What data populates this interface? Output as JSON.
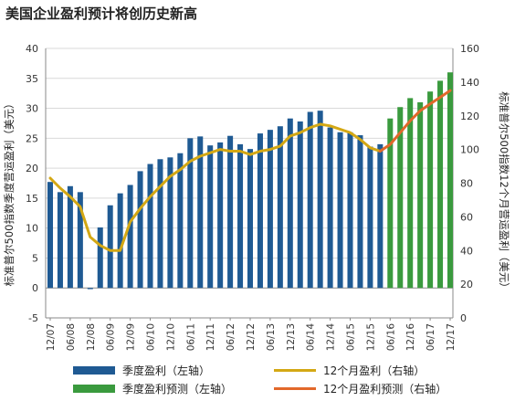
{
  "chart_data": {
    "type": "bar",
    "title": "美国企业盈利预计将创历史新高",
    "ylabel_left": "标准普尔500指数季度营运盈利（美元）",
    "ylabel_right": "标准普尔500指数12个月营运盈利（美元）",
    "ylim_left": [
      -5,
      40
    ],
    "ylim_right": [
      0,
      160
    ],
    "left_ticks": [
      "-5",
      "0",
      "5",
      "10",
      "15",
      "20",
      "25",
      "30",
      "35",
      "40"
    ],
    "right_ticks": [
      "0",
      "20",
      "40",
      "60",
      "80",
      "100",
      "120",
      "140",
      "160"
    ],
    "x_tick_labels": [
      "12/07",
      "06/08",
      "12/08",
      "06/09",
      "12/09",
      "06/10",
      "12/10",
      "06/11",
      "12/11",
      "06/12",
      "12/12",
      "06/13",
      "12/13",
      "06/14",
      "12/14",
      "06/15",
      "12/15",
      "06/16",
      "12/16",
      "06/17",
      "12/17"
    ],
    "x_start": "12/07",
    "x_end": "12/17",
    "grid": "horizontal",
    "legend_position": "bottom",
    "series": [
      {
        "name": "季度盈利（左轴）",
        "kind": "bar",
        "axis": "left",
        "color": "#1f5a93",
        "x": [
          "12/07",
          "03/08",
          "06/08",
          "09/08",
          "12/08",
          "03/09",
          "06/09",
          "09/09",
          "12/09",
          "03/10",
          "06/10",
          "09/10",
          "12/10",
          "03/11",
          "06/11",
          "09/11",
          "12/11",
          "03/12",
          "06/12",
          "09/12",
          "12/12",
          "03/13",
          "06/13",
          "09/13",
          "12/13",
          "03/14",
          "06/14",
          "09/14",
          "12/14",
          "03/15",
          "06/15",
          "09/15",
          "12/15",
          "03/16"
        ],
        "values": [
          17.7,
          16.0,
          17.0,
          16.0,
          -0.2,
          10.1,
          13.8,
          15.8,
          17.2,
          19.5,
          20.7,
          21.5,
          21.8,
          22.5,
          25.0,
          25.3,
          23.8,
          24.3,
          25.4,
          24.0,
          23.2,
          25.8,
          26.4,
          27.0,
          28.3,
          27.8,
          29.4,
          29.6,
          26.8,
          26.0,
          26.0,
          25.5,
          23.6,
          24.0
        ]
      },
      {
        "name": "季度盈利预测（左轴）",
        "kind": "bar",
        "axis": "left",
        "color": "#3a9a3e",
        "x": [
          "06/16",
          "09/16",
          "12/16",
          "03/17",
          "06/17",
          "09/17",
          "12/17"
        ],
        "values": [
          28.3,
          30.2,
          31.7,
          31.0,
          32.8,
          34.6,
          36.0
        ]
      },
      {
        "name": "12个月盈利（右轴）",
        "kind": "line",
        "axis": "right",
        "color": "#d4a814",
        "x": [
          "12/07",
          "03/08",
          "06/08",
          "09/08",
          "12/08",
          "03/09",
          "06/09",
          "09/09",
          "12/09",
          "03/10",
          "06/10",
          "09/10",
          "12/10",
          "03/11",
          "06/11",
          "09/11",
          "12/11",
          "03/12",
          "06/12",
          "09/12",
          "12/12",
          "03/13",
          "06/13",
          "09/13",
          "12/13",
          "03/14",
          "06/14",
          "09/14",
          "12/14",
          "03/15",
          "06/15",
          "09/15",
          "12/15",
          "03/16"
        ],
        "values": [
          83,
          77,
          72,
          66,
          48,
          43,
          40,
          40,
          57,
          65,
          72,
          78,
          84,
          88,
          93,
          96,
          98,
          100,
          99,
          99,
          97,
          99,
          100,
          102,
          108,
          110,
          113,
          115,
          114,
          112,
          110,
          106,
          101,
          99
        ]
      },
      {
        "name": "12个月盈利预测（右轴）",
        "kind": "line",
        "axis": "right",
        "color": "#e2682a",
        "x": [
          "03/16",
          "06/16",
          "09/16",
          "12/16",
          "03/17",
          "06/17",
          "09/17",
          "12/17"
        ],
        "values": [
          99,
          103,
          110,
          117,
          123,
          127,
          131,
          135
        ]
      }
    ]
  },
  "legend": [
    {
      "label": "季度盈利（左轴）",
      "color": "#1f5a93",
      "kind": "bar"
    },
    {
      "label": "12个月盈利（右轴）",
      "color": "#d4a814",
      "kind": "line"
    },
    {
      "label": "季度盈利预测（左轴）",
      "color": "#3a9a3e",
      "kind": "bar"
    },
    {
      "label": "12个月盈利预测（右轴）",
      "color": "#e2682a",
      "kind": "line"
    }
  ]
}
